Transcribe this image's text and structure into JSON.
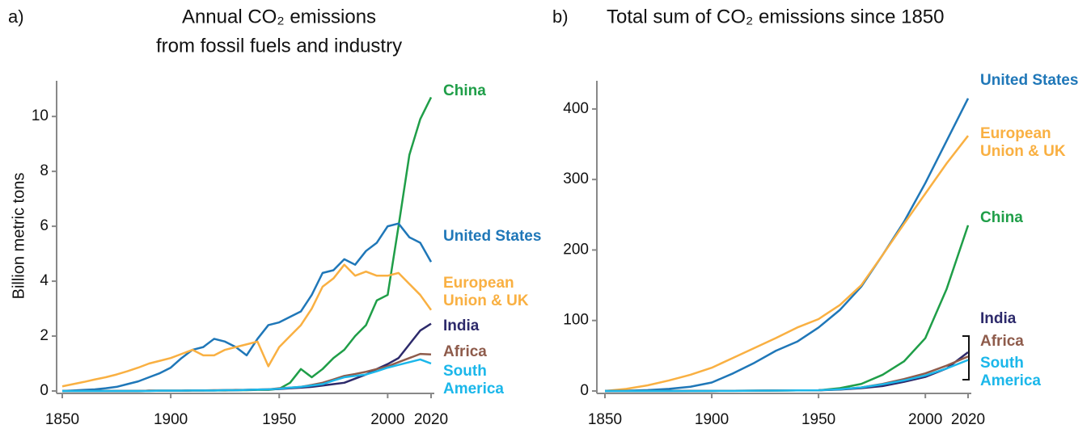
{
  "chart_data": [
    {
      "type": "line",
      "panel": "a)",
      "title": [
        "Annual CO₂ emissions",
        "from fossil fuels and industry"
      ],
      "y_label": "Billion metric tons",
      "x": [
        1850,
        1855,
        1860,
        1865,
        1870,
        1875,
        1880,
        1885,
        1890,
        1895,
        1900,
        1905,
        1910,
        1915,
        1920,
        1925,
        1930,
        1935,
        1940,
        1945,
        1950,
        1955,
        1960,
        1965,
        1970,
        1975,
        1980,
        1985,
        1990,
        1995,
        2000,
        2005,
        2010,
        2015,
        2020
      ],
      "xlim": [
        1850,
        2020
      ],
      "xticks": [
        1850,
        1900,
        1950,
        2000,
        2020
      ],
      "ylim": [
        0,
        11.3
      ],
      "yticks": [
        0,
        2,
        4,
        6,
        8,
        10
      ],
      "series": [
        {
          "name": "China",
          "color": "#1f9e48",
          "values": [
            0,
            0,
            0,
            0,
            0,
            0,
            0,
            0,
            0.01,
            0.01,
            0.01,
            0.01,
            0.02,
            0.02,
            0.02,
            0.02,
            0.03,
            0.03,
            0.04,
            0.04,
            0.08,
            0.3,
            0.8,
            0.5,
            0.8,
            1.2,
            1.5,
            2.0,
            2.4,
            3.3,
            3.5,
            6.0,
            8.6,
            9.9,
            10.7
          ]
        },
        {
          "name": "United States",
          "color": "#1f77b8",
          "values": [
            0,
            0.02,
            0.04,
            0.06,
            0.1,
            0.15,
            0.25,
            0.35,
            0.5,
            0.65,
            0.85,
            1.2,
            1.5,
            1.6,
            1.9,
            1.8,
            1.6,
            1.3,
            1.9,
            2.4,
            2.5,
            2.7,
            2.9,
            3.5,
            4.3,
            4.4,
            4.8,
            4.6,
            5.1,
            5.4,
            6.0,
            6.1,
            5.6,
            5.4,
            4.7
          ]
        },
        {
          "name": "European Union & UK",
          "color": "#f9b042",
          "values": [
            0.17,
            0.25,
            0.33,
            0.42,
            0.5,
            0.6,
            0.72,
            0.85,
            1.0,
            1.1,
            1.2,
            1.35,
            1.5,
            1.3,
            1.3,
            1.5,
            1.6,
            1.7,
            1.8,
            0.9,
            1.6,
            2.0,
            2.4,
            3.0,
            3.8,
            4.1,
            4.6,
            4.2,
            4.35,
            4.2,
            4.2,
            4.3,
            3.9,
            3.5,
            2.95
          ]
        },
        {
          "name": "India",
          "color": "#2d2a6b",
          "values": [
            0,
            0,
            0,
            0,
            0,
            0,
            0,
            0,
            0.01,
            0.01,
            0.01,
            0.01,
            0.02,
            0.02,
            0.02,
            0.03,
            0.03,
            0.04,
            0.05,
            0.06,
            0.07,
            0.1,
            0.12,
            0.15,
            0.2,
            0.25,
            0.3,
            0.45,
            0.6,
            0.8,
            0.98,
            1.2,
            1.7,
            2.2,
            2.45
          ]
        },
        {
          "name": "Africa",
          "color": "#8e5b4b",
          "values": [
            0,
            0,
            0,
            0,
            0,
            0,
            0,
            0,
            0.01,
            0.01,
            0.01,
            0.01,
            0.02,
            0.02,
            0.03,
            0.03,
            0.04,
            0.04,
            0.05,
            0.06,
            0.1,
            0.12,
            0.15,
            0.22,
            0.3,
            0.42,
            0.55,
            0.62,
            0.7,
            0.8,
            0.9,
            1.05,
            1.2,
            1.35,
            1.33
          ]
        },
        {
          "name": "South America",
          "color": "#1bb7ea",
          "values": [
            0,
            0,
            0,
            0,
            0,
            0,
            0,
            0,
            0,
            0.01,
            0.01,
            0.01,
            0.02,
            0.02,
            0.02,
            0.03,
            0.03,
            0.04,
            0.05,
            0.06,
            0.08,
            0.12,
            0.15,
            0.2,
            0.25,
            0.38,
            0.5,
            0.55,
            0.6,
            0.72,
            0.85,
            0.95,
            1.05,
            1.15,
            1.0
          ]
        }
      ]
    },
    {
      "type": "line",
      "panel": "b)",
      "title": [
        "Total sum of CO₂ emissions since 1850"
      ],
      "x": [
        1850,
        1860,
        1870,
        1880,
        1890,
        1900,
        1910,
        1920,
        1930,
        1940,
        1950,
        1960,
        1970,
        1980,
        1990,
        2000,
        2010,
        2020
      ],
      "xlim": [
        1850,
        2020
      ],
      "xticks": [
        1850,
        1900,
        1950,
        2000,
        2020
      ],
      "ylim": [
        0,
        440
      ],
      "yticks": [
        0,
        100,
        200,
        300,
        400
      ],
      "series": [
        {
          "name": "United States",
          "color": "#1f77b8",
          "values": [
            0,
            0.5,
            1.3,
            3,
            6,
            12,
            25,
            40,
            57,
            70,
            90,
            115,
            148,
            193,
            240,
            295,
            355,
            415
          ]
        },
        {
          "name": "European Union & UK",
          "color": "#f9b042",
          "values": [
            0,
            3,
            8,
            15,
            23,
            33,
            47,
            61,
            75,
            90,
            102,
            122,
            150,
            193,
            237,
            280,
            323,
            362
          ]
        },
        {
          "name": "China",
          "color": "#1f9e48",
          "values": [
            0,
            0,
            0,
            0,
            0.1,
            0.2,
            0.3,
            0.4,
            0.6,
            0.8,
            1,
            4,
            10,
            23,
            42,
            75,
            145,
            235
          ]
        },
        {
          "name": "India",
          "color": "#2d2a6b",
          "values": [
            0,
            0,
            0,
            0,
            0.1,
            0.2,
            0.3,
            0.5,
            0.7,
            0.9,
            1,
            2,
            4,
            7,
            13,
            20,
            32,
            55
          ]
        },
        {
          "name": "Africa",
          "color": "#8e5b4b",
          "values": [
            0,
            0,
            0,
            0,
            0.1,
            0.2,
            0.3,
            0.5,
            0.7,
            0.9,
            1,
            2.5,
            5,
            10,
            17,
            25,
            36,
            49
          ]
        },
        {
          "name": "South America",
          "color": "#1bb7ea",
          "values": [
            0,
            0,
            0,
            0,
            0,
            0.1,
            0.2,
            0.4,
            0.6,
            0.8,
            1,
            2.5,
            5,
            9.5,
            15,
            22,
            32,
            44
          ]
        }
      ]
    }
  ]
}
